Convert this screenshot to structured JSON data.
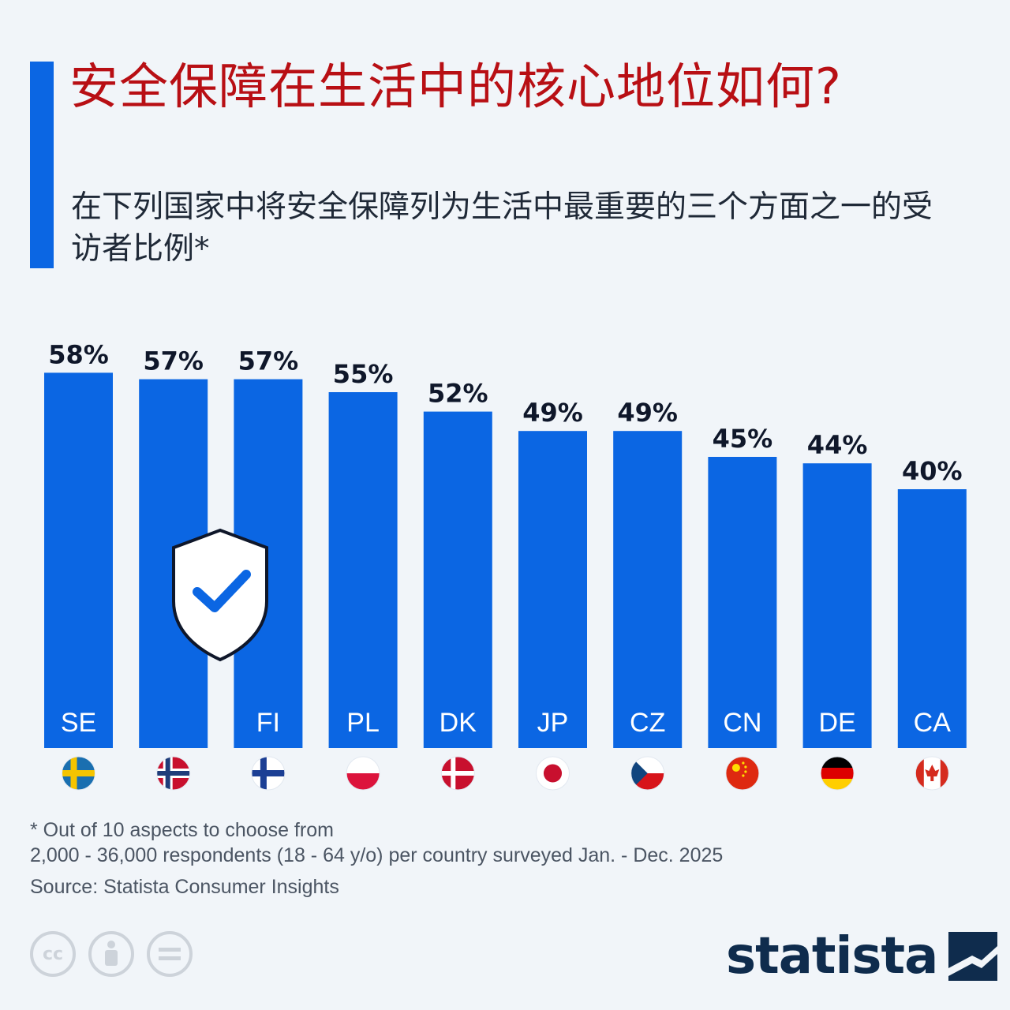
{
  "title": "安全保障在生活中的核心地位如何?",
  "subtitle": "在下列国家中将安全保障列为生活中最重要的三个方面之一的受访者比例*",
  "colors": {
    "bar": "#0b66e3",
    "title": "#b80f14",
    "accent": "#0b66e3"
  },
  "chart_data": {
    "type": "bar",
    "title": "安全保障在生活中的核心地位如何?",
    "categories": [
      "SE",
      "NO",
      "FI",
      "PL",
      "DK",
      "JP",
      "CZ",
      "CN",
      "DE",
      "CA"
    ],
    "visible_category_labels": [
      "SE",
      "",
      "FI",
      "PL",
      "DK",
      "JP",
      "CZ",
      "CN",
      "DE",
      "CA"
    ],
    "values": [
      58,
      57,
      57,
      55,
      52,
      49,
      49,
      45,
      44,
      40
    ],
    "value_labels": [
      "58%",
      "57%",
      "57%",
      "55%",
      "52%",
      "49%",
      "49%",
      "45%",
      "44%",
      "40%"
    ],
    "unit": "%",
    "xlabel": "",
    "ylabel": "",
    "grid": false,
    "legend": false,
    "flags": [
      "sweden-flag-icon",
      "norway-flag-icon",
      "finland-flag-icon",
      "poland-flag-icon",
      "denmark-flag-icon",
      "japan-flag-icon",
      "czech-flag-icon",
      "china-flag-icon",
      "germany-flag-icon",
      "canada-flag-icon"
    ]
  },
  "footnote_line1": "* Out of 10 aspects to choose from",
  "footnote_line2": "2,000 - 36,000 respondents (18 - 64 y/o) per country surveyed Jan. - Dec. 2025",
  "source": "Source: Statista Consumer Insights",
  "license_icons": [
    "cc",
    "by",
    "nd"
  ],
  "logo": "statista"
}
